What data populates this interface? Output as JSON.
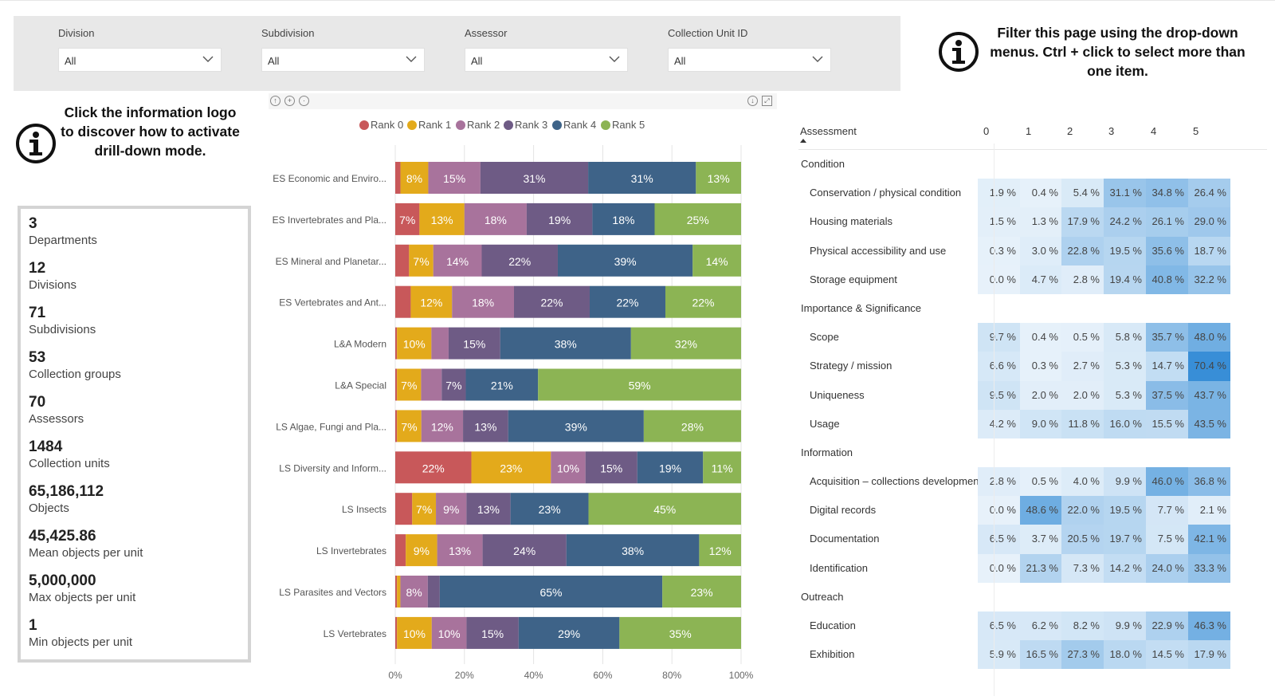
{
  "filters": [
    {
      "label": "Division",
      "value": "All"
    },
    {
      "label": "Subdivision",
      "value": "All"
    },
    {
      "label": "Assessor",
      "value": "All"
    },
    {
      "label": "Collection Unit ID",
      "value": "All"
    }
  ],
  "filter_hint": "Filter this page using the drop-down menus. Ctrl + click to select more than one item.",
  "drill_hint": "Click the information logo to discover how to activate drill-down mode.",
  "stats": [
    {
      "value": "3",
      "label": "Departments"
    },
    {
      "value": "12",
      "label": "Divisions"
    },
    {
      "value": "71",
      "label": "Subdivisions"
    },
    {
      "value": "53",
      "label": "Collection groups"
    },
    {
      "value": "70",
      "label": "Assessors"
    },
    {
      "value": "1484",
      "label": "Collection units"
    },
    {
      "value": "65,186,112",
      "label": "Objects"
    },
    {
      "value": "45,425.86",
      "label": "Mean objects per unit"
    },
    {
      "value": "5,000,000",
      "label": "Max objects per unit"
    },
    {
      "value": "1",
      "label": "Min objects per unit"
    }
  ],
  "chart_data": {
    "type": "bar",
    "orientation": "horizontal",
    "stacked": "percent",
    "legend_position": "top-center",
    "grid": true,
    "xlim": [
      0,
      100
    ],
    "x_ticks": [
      "0%",
      "20%",
      "40%",
      "60%",
      "80%",
      "100%"
    ],
    "categories": [
      "ES Economic and Enviro...",
      "ES Invertebrates and Pla...",
      "ES Mineral and Planetar...",
      "ES Vertebrates and Ant...",
      "L&A Modern",
      "L&A Special",
      "LS Algae, Fungi and Pla...",
      "LS Diversity and Inform...",
      "LS Insects",
      "LS Invertebrates",
      "LS Parasites and Vectors",
      "LS Vertebrates"
    ],
    "series": [
      {
        "name": "Rank 0",
        "color": "#c8585a",
        "values": [
          1.5,
          7,
          4,
          4.5,
          0.5,
          0.5,
          0.5,
          22,
          5,
          3,
          0.5,
          0.5
        ]
      },
      {
        "name": "Rank 1",
        "color": "#e3aa1b",
        "values": [
          8,
          13,
          7,
          12,
          10,
          7,
          7,
          23,
          7,
          9,
          1,
          10
        ]
      },
      {
        "name": "Rank 2",
        "color": "#a8739c",
        "values": [
          15,
          18,
          14,
          18,
          5,
          6,
          12,
          10,
          9,
          13,
          8,
          10
        ]
      },
      {
        "name": "Rank 3",
        "color": "#6e5b85",
        "values": [
          31,
          19,
          22,
          22,
          15,
          7,
          13,
          15,
          13,
          24,
          3.5,
          15
        ]
      },
      {
        "name": "Rank 4",
        "color": "#3e6388",
        "values": [
          31,
          18,
          39,
          22,
          38,
          21,
          39,
          19,
          23,
          38,
          65,
          29
        ]
      },
      {
        "name": "Rank 5",
        "color": "#8cb454",
        "values": [
          13,
          25,
          14,
          22,
          32,
          59,
          28,
          11,
          45,
          12,
          23,
          35
        ]
      }
    ],
    "data_labels": [
      [
        "",
        "8%",
        "15%",
        "31%",
        "31%",
        "13%"
      ],
      [
        "7%",
        "13%",
        "18%",
        "19%",
        "18%",
        "25%"
      ],
      [
        "",
        "7%",
        "14%",
        "22%",
        "39%",
        "14%"
      ],
      [
        "",
        "12%",
        "18%",
        "22%",
        "22%",
        "22%"
      ],
      [
        "",
        "10%",
        "",
        "15%",
        "38%",
        "32%"
      ],
      [
        "",
        "7%",
        "",
        "7%",
        "21%",
        "59%"
      ],
      [
        "",
        "7%",
        "12%",
        "13%",
        "39%",
        "28%"
      ],
      [
        "22%",
        "23%",
        "10%",
        "15%",
        "19%",
        "11%"
      ],
      [
        "",
        "7%",
        "9%",
        "13%",
        "23%",
        "45%"
      ],
      [
        "",
        "9%",
        "13%",
        "24%",
        "38%",
        "12%"
      ],
      [
        "",
        "",
        "8%",
        "",
        "65%",
        "23%"
      ],
      [
        "",
        "10%",
        "10%",
        "15%",
        "29%",
        "35%"
      ]
    ]
  },
  "matrix": {
    "header": {
      "row_label": "Assessment",
      "columns": [
        "0",
        "1",
        "2",
        "3",
        "4",
        "5"
      ]
    },
    "rows": [
      {
        "type": "group",
        "name": "Condition"
      },
      {
        "type": "item",
        "name": "Conservation / physical condition",
        "values": [
          "1.9 %",
          "0.4 %",
          "5.4 %",
          "31.1 %",
          "34.8 %",
          "26.4 %"
        ],
        "levels": [
          1.9,
          0.4,
          5.4,
          31.1,
          34.8,
          26.4
        ]
      },
      {
        "type": "item",
        "name": "Housing materials",
        "values": [
          "1.5 %",
          "1.3 %",
          "17.9 %",
          "24.2 %",
          "26.1 %",
          "29.0 %"
        ],
        "levels": [
          1.5,
          1.3,
          17.9,
          24.2,
          26.1,
          29.0
        ]
      },
      {
        "type": "item",
        "name": "Physical accessibility and use",
        "values": [
          "0.3 %",
          "3.0 %",
          "22.8 %",
          "19.5 %",
          "35.6 %",
          "18.7 %"
        ],
        "levels": [
          0.3,
          3.0,
          22.8,
          19.5,
          35.6,
          18.7
        ]
      },
      {
        "type": "item",
        "name": "Storage equipment",
        "values": [
          "0.0 %",
          "4.7 %",
          "2.8 %",
          "19.4 %",
          "40.8 %",
          "32.2 %"
        ],
        "levels": [
          0.0,
          4.7,
          2.8,
          19.4,
          40.8,
          32.2
        ]
      },
      {
        "type": "group",
        "name": "Importance & Significance"
      },
      {
        "type": "item",
        "name": "Scope",
        "values": [
          "9.7 %",
          "0.4 %",
          "0.5 %",
          "5.8 %",
          "35.7 %",
          "48.0 %"
        ],
        "levels": [
          9.7,
          0.4,
          0.5,
          5.8,
          35.7,
          48.0
        ]
      },
      {
        "type": "item",
        "name": "Strategy / mission",
        "values": [
          "6.6 %",
          "0.3 %",
          "2.7 %",
          "5.3 %",
          "14.7 %",
          "70.4 %"
        ],
        "levels": [
          6.6,
          0.3,
          2.7,
          5.3,
          14.7,
          70.4
        ]
      },
      {
        "type": "item",
        "name": "Uniqueness",
        "values": [
          "9.5 %",
          "2.0 %",
          "2.0 %",
          "5.3 %",
          "37.5 %",
          "43.7 %"
        ],
        "levels": [
          9.5,
          2.0,
          2.0,
          5.3,
          37.5,
          43.7
        ]
      },
      {
        "type": "item",
        "name": "Usage",
        "values": [
          "4.2 %",
          "9.0 %",
          "11.8 %",
          "16.0 %",
          "15.5 %",
          "43.5 %"
        ],
        "levels": [
          4.2,
          9.0,
          11.8,
          16.0,
          15.5,
          43.5
        ]
      },
      {
        "type": "group",
        "name": "Information"
      },
      {
        "type": "item",
        "name": "Acquisition – collections development",
        "values": [
          "2.8 %",
          "0.5 %",
          "4.0 %",
          "9.9 %",
          "46.0 %",
          "36.8 %"
        ],
        "levels": [
          2.8,
          0.5,
          4.0,
          9.9,
          46.0,
          36.8
        ]
      },
      {
        "type": "item",
        "name": "Digital records",
        "values": [
          "0.0 %",
          "48.6 %",
          "22.0 %",
          "19.5 %",
          "7.7 %",
          "2.1 %"
        ],
        "levels": [
          0.0,
          48.6,
          22.0,
          19.5,
          7.7,
          2.1
        ]
      },
      {
        "type": "item",
        "name": "Documentation",
        "values": [
          "6.5 %",
          "3.7 %",
          "20.5 %",
          "19.7 %",
          "7.5 %",
          "42.1 %"
        ],
        "levels": [
          6.5,
          3.7,
          20.5,
          19.7,
          7.5,
          42.1
        ]
      },
      {
        "type": "item",
        "name": "Identification",
        "values": [
          "0.0 %",
          "21.3 %",
          "7.3 %",
          "14.2 %",
          "24.0 %",
          "33.3 %"
        ],
        "levels": [
          0.0,
          21.3,
          7.3,
          14.2,
          24.0,
          33.3
        ]
      },
      {
        "type": "group",
        "name": "Outreach"
      },
      {
        "type": "item",
        "name": "Education",
        "values": [
          "6.5 %",
          "6.2 %",
          "8.2 %",
          "9.9 %",
          "22.9 %",
          "46.3 %"
        ],
        "levels": [
          6.5,
          6.2,
          8.2,
          9.9,
          22.9,
          46.3
        ]
      },
      {
        "type": "item",
        "name": "Exhibition",
        "values": [
          "5.9 %",
          "16.5 %",
          "27.3 %",
          "18.0 %",
          "14.5 %",
          "17.9 %"
        ],
        "levels": [
          5.9,
          16.5,
          27.3,
          18.0,
          14.5,
          17.9
        ]
      }
    ]
  }
}
